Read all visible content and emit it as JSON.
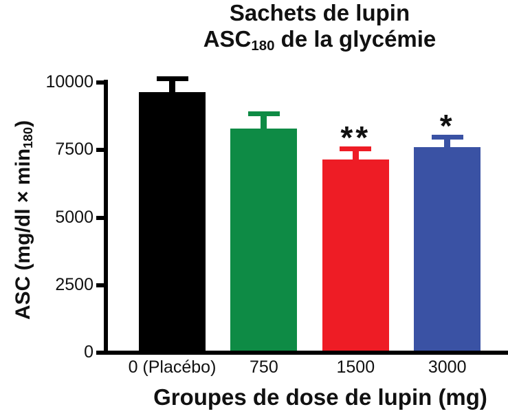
{
  "title": {
    "line1": "Sachets de lupin",
    "line2_prefix": "ASC",
    "line2_sub": "180",
    "line2_suffix": " de la glycémie"
  },
  "y_axis": {
    "label_prefix": "ASC (mg/dl × min",
    "label_sub": "180",
    "label_suffix": ")"
  },
  "x_axis": {
    "title": "Groupes de dose de lupin (mg)"
  },
  "chart_data": {
    "type": "bar",
    "title": "Sachets de lupin — ASC180 de la glycémie",
    "xlabel": "Groupes de dose de lupin (mg)",
    "ylabel": "ASC (mg/dl × min180)",
    "categories": [
      "0 (Placébo)",
      "750",
      "1500",
      "3000"
    ],
    "values": [
      9650,
      8300,
      7150,
      7600
    ],
    "errors_upper": [
      500,
      550,
      400,
      370
    ],
    "annotations": [
      "",
      "",
      "**",
      "*"
    ],
    "colors": [
      "#000000",
      "#0E8B45",
      "#EE1C25",
      "#3A52A4"
    ],
    "ylim": [
      0,
      10000
    ],
    "yticks": [
      0,
      2500,
      5000,
      7500,
      10000
    ],
    "grid": false,
    "legend": "none"
  }
}
